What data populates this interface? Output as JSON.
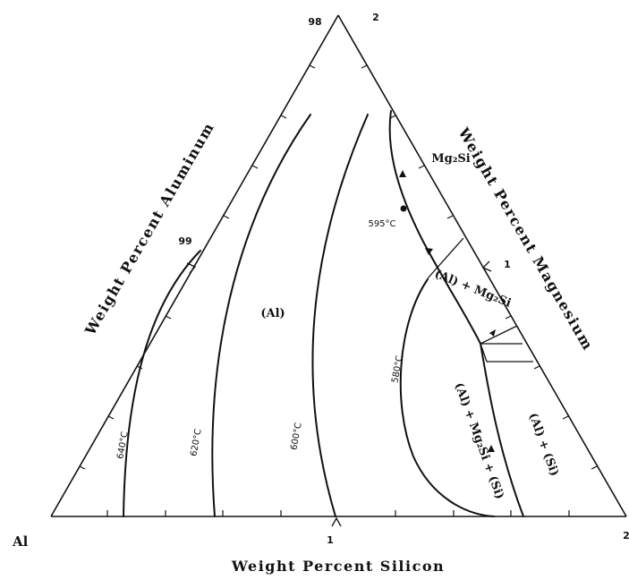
{
  "diagram": {
    "corner_left": "Al",
    "corner_right": "2",
    "apex_left": "98",
    "apex_right": "2",
    "axis_bottom": "Weight Percent Silicon",
    "axis_left": "Weight Percent Aluminum",
    "axis_right": "Weight Percent Magnesium",
    "bottom_mid_tick": "1",
    "left_mid_tick": "99",
    "right_mid_tick": "1",
    "isotherms": [
      "640°C",
      "620°C",
      "600°C",
      "595°C",
      "580°C"
    ],
    "phases": {
      "al": "(Al)",
      "mg2si_label": "Mg₂Si",
      "al_mg2si": "(Al) + Mg₂Si",
      "al_mg2si_si": "(Al) + Mg₂Si + (Si)",
      "al_si": "(Al) + (Si)"
    }
  }
}
